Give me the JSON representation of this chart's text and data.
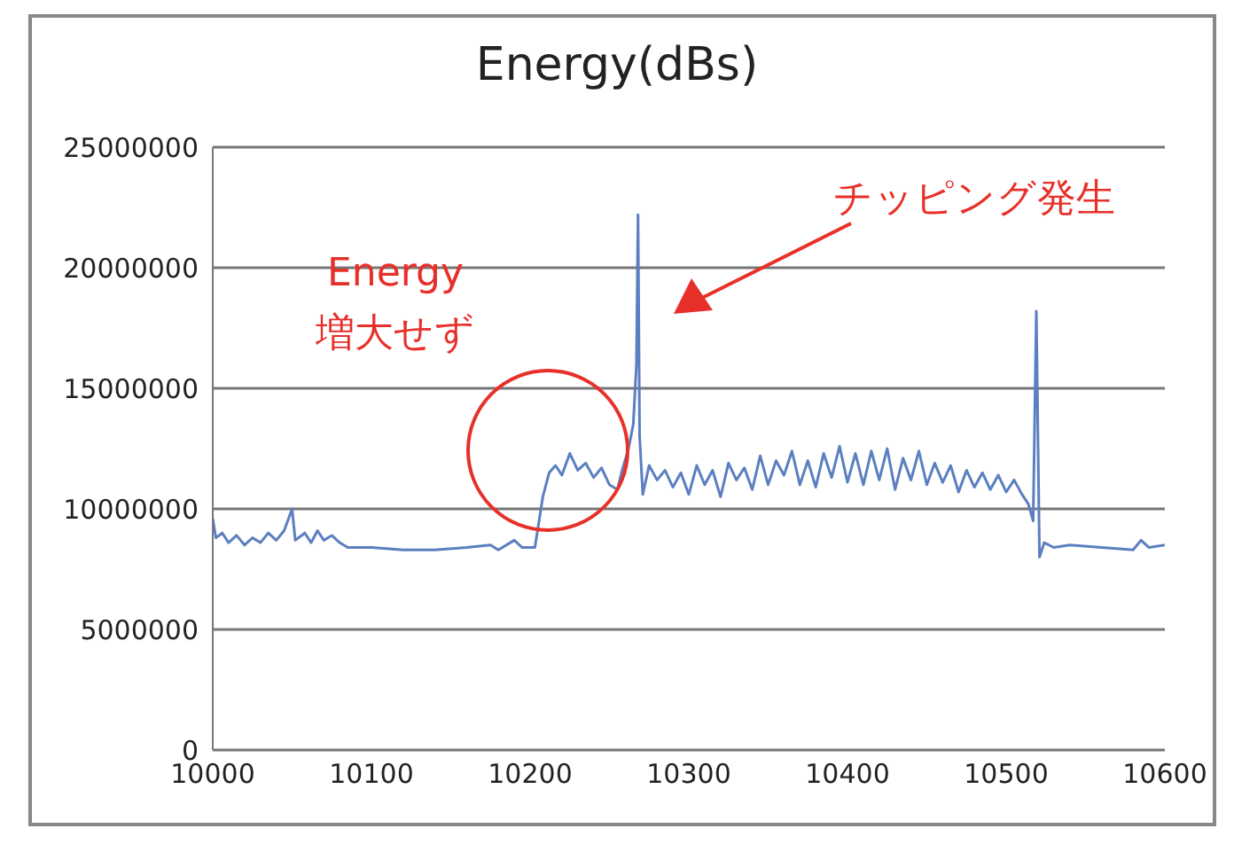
{
  "chart_data": {
    "type": "line",
    "title": "Energy(dBs)",
    "x": [
      10000,
      10002,
      10006,
      10010,
      10015,
      10020,
      10025,
      10030,
      10035,
      10040,
      10045,
      10050,
      10052,
      10058,
      10062,
      10066,
      10070,
      10075,
      10080,
      10085,
      10100,
      10120,
      10140,
      10160,
      10175,
      10180,
      10190,
      10195,
      10203,
      10208,
      10212,
      10216,
      10220,
      10225,
      10230,
      10235,
      10240,
      10245,
      10250,
      10255,
      10258,
      10262,
      10265,
      10267,
      10268,
      10269,
      10271,
      10275,
      10280,
      10285,
      10290,
      10295,
      10300,
      10305,
      10310,
      10315,
      10320,
      10325,
      10330,
      10335,
      10340,
      10345,
      10350,
      10355,
      10360,
      10365,
      10370,
      10375,
      10380,
      10385,
      10390,
      10395,
      10400,
      10405,
      10410,
      10415,
      10420,
      10425,
      10430,
      10435,
      10440,
      10445,
      10450,
      10455,
      10460,
      10465,
      10470,
      10475,
      10480,
      10485,
      10490,
      10495,
      10500,
      10505,
      10510,
      10514,
      10517,
      10519,
      10521,
      10524,
      10530,
      10540,
      10560,
      10580,
      10585,
      10590,
      10600
    ],
    "series": [
      {
        "color": "#5b7fc0",
        "values": [
          9600000,
          8800000,
          9000000,
          8600000,
          8900000,
          8500000,
          8800000,
          8600000,
          9000000,
          8700000,
          9100000,
          10000000,
          8700000,
          9000000,
          8600000,
          9100000,
          8700000,
          8900000,
          8600000,
          8400000,
          8400000,
          8300000,
          8300000,
          8400000,
          8500000,
          8300000,
          8700000,
          8400000,
          8400000,
          10500000,
          11500000,
          11800000,
          11400000,
          12300000,
          11600000,
          11900000,
          11300000,
          11700000,
          11000000,
          10800000,
          11600000,
          12500000,
          13500000,
          16000000,
          22200000,
          13000000,
          10600000,
          11800000,
          11200000,
          11600000,
          10900000,
          11500000,
          10600000,
          11800000,
          11000000,
          11600000,
          10500000,
          11900000,
          11200000,
          11700000,
          10800000,
          12200000,
          11000000,
          12000000,
          11400000,
          12400000,
          11000000,
          12000000,
          10900000,
          12300000,
          11300000,
          12600000,
          11100000,
          12300000,
          11000000,
          12400000,
          11200000,
          12500000,
          10800000,
          12100000,
          11200000,
          12400000,
          11000000,
          11900000,
          11100000,
          11800000,
          10700000,
          11600000,
          10900000,
          11500000,
          10800000,
          11400000,
          10700000,
          11200000,
          10600000,
          10200000,
          9500000,
          18200000,
          8000000,
          8600000,
          8400000,
          8500000,
          8400000,
          8300000,
          8700000,
          8400000,
          8500000
        ]
      }
    ],
    "xlim": [
      10000,
      10600
    ],
    "xticks": [
      10000,
      10100,
      10200,
      10300,
      10400,
      10500,
      10600
    ],
    "ylim": [
      0,
      25000000
    ],
    "yticks": [
      0,
      5000000,
      10000000,
      15000000,
      20000000,
      25000000
    ],
    "grid": "y",
    "legend": false,
    "marker": "none",
    "line_style": "solid",
    "annotations": [
      "Energy\n増大せず",
      "チッピング発生"
    ]
  }
}
